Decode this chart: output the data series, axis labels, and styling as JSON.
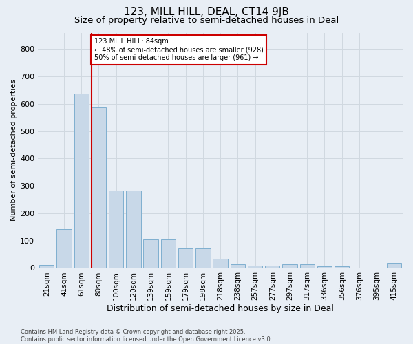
{
  "title": "123, MILL HILL, DEAL, CT14 9JB",
  "subtitle": "Size of property relative to semi-detached houses in Deal",
  "xlabel": "Distribution of semi-detached houses by size in Deal",
  "ylabel": "Number of semi-detached properties",
  "categories": [
    "21sqm",
    "41sqm",
    "61sqm",
    "80sqm",
    "100sqm",
    "120sqm",
    "139sqm",
    "159sqm",
    "179sqm",
    "198sqm",
    "218sqm",
    "238sqm",
    "257sqm",
    "277sqm",
    "297sqm",
    "317sqm",
    "336sqm",
    "356sqm",
    "376sqm",
    "395sqm",
    "415sqm"
  ],
  "values": [
    10,
    143,
    637,
    587,
    282,
    282,
    105,
    105,
    72,
    72,
    35,
    14,
    9,
    9,
    14,
    14,
    7,
    7,
    0,
    0,
    18
  ],
  "bar_color": "#c8d8e8",
  "bar_edge_color": "#7fafd0",
  "property_line_bin": 3,
  "property_label": "123 MILL HILL: 84sqm",
  "annotation_line1": "← 48% of semi-detached houses are smaller (928)",
  "annotation_line2": "50% of semi-detached houses are larger (961) →",
  "annotation_box_color": "#ffffff",
  "annotation_box_edge": "#cc0000",
  "vline_color": "#cc0000",
  "grid_color": "#d0d8e0",
  "background_color": "#e8eef5",
  "title_fontsize": 11,
  "subtitle_fontsize": 9.5,
  "axis_label_fontsize": 9,
  "ylabel_fontsize": 8,
  "tick_fontsize": 8,
  "footer_text": "Contains HM Land Registry data © Crown copyright and database right 2025.\nContains public sector information licensed under the Open Government Licence v3.0.",
  "ylim": [
    0,
    860
  ],
  "yticks": [
    0,
    100,
    200,
    300,
    400,
    500,
    600,
    700,
    800
  ]
}
